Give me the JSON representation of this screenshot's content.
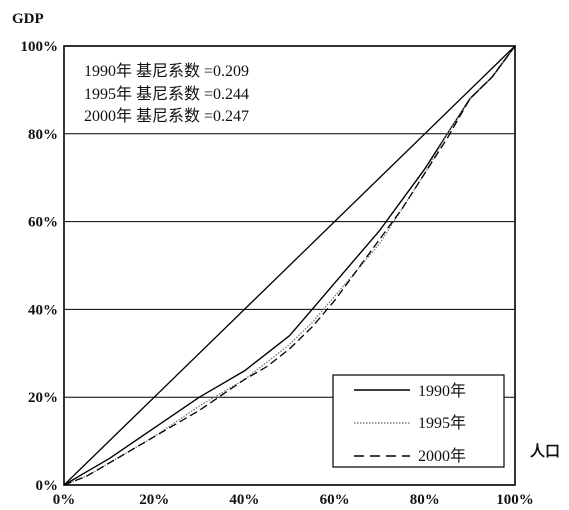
{
  "chart_data": {
    "type": "line",
    "title": "",
    "ylabel": "GDP",
    "xlabel": "人口",
    "xlim": [
      0,
      100
    ],
    "ylim": [
      0,
      100
    ],
    "x_ticks": [
      "0%",
      "20%",
      "40%",
      "60%",
      "80%",
      "100%"
    ],
    "y_ticks": [
      "0%",
      "20%",
      "40%",
      "60%",
      "80%",
      "100%"
    ],
    "grid": "horizontal",
    "legend_position": "bottom-right",
    "annotations": [
      "1990年 基尼系数 =0.209",
      "1995年 基尼系数 =0.244",
      "2000年 基尼系数 =0.247"
    ],
    "series": [
      {
        "name": "1990年",
        "style": "solid",
        "x": [
          0,
          5,
          10,
          20,
          30,
          40,
          45,
          50,
          55,
          60,
          65,
          70,
          75,
          80,
          85,
          90,
          95,
          100
        ],
        "y": [
          0,
          3,
          6,
          13,
          20,
          26,
          30,
          34,
          40,
          46,
          52,
          58,
          65,
          72,
          80,
          88,
          93,
          100
        ]
      },
      {
        "name": "1995年",
        "style": "dotted",
        "x": [
          0,
          5,
          10,
          20,
          30,
          40,
          45,
          50,
          55,
          60,
          65,
          70,
          75,
          80,
          85,
          90,
          95,
          100
        ],
        "y": [
          0,
          2,
          5,
          11,
          18,
          24,
          28,
          32,
          37,
          43,
          49,
          55,
          63,
          71,
          80,
          88,
          93,
          100
        ]
      },
      {
        "name": "2000年",
        "style": "dashed",
        "x": [
          0,
          5,
          10,
          20,
          30,
          40,
          45,
          50,
          55,
          60,
          65,
          70,
          75,
          80,
          85,
          90,
          95,
          100
        ],
        "y": [
          0,
          2,
          5,
          11,
          17,
          24,
          27,
          31,
          36,
          42,
          49,
          56,
          63,
          71,
          79,
          88,
          93,
          100
        ]
      }
    ]
  }
}
